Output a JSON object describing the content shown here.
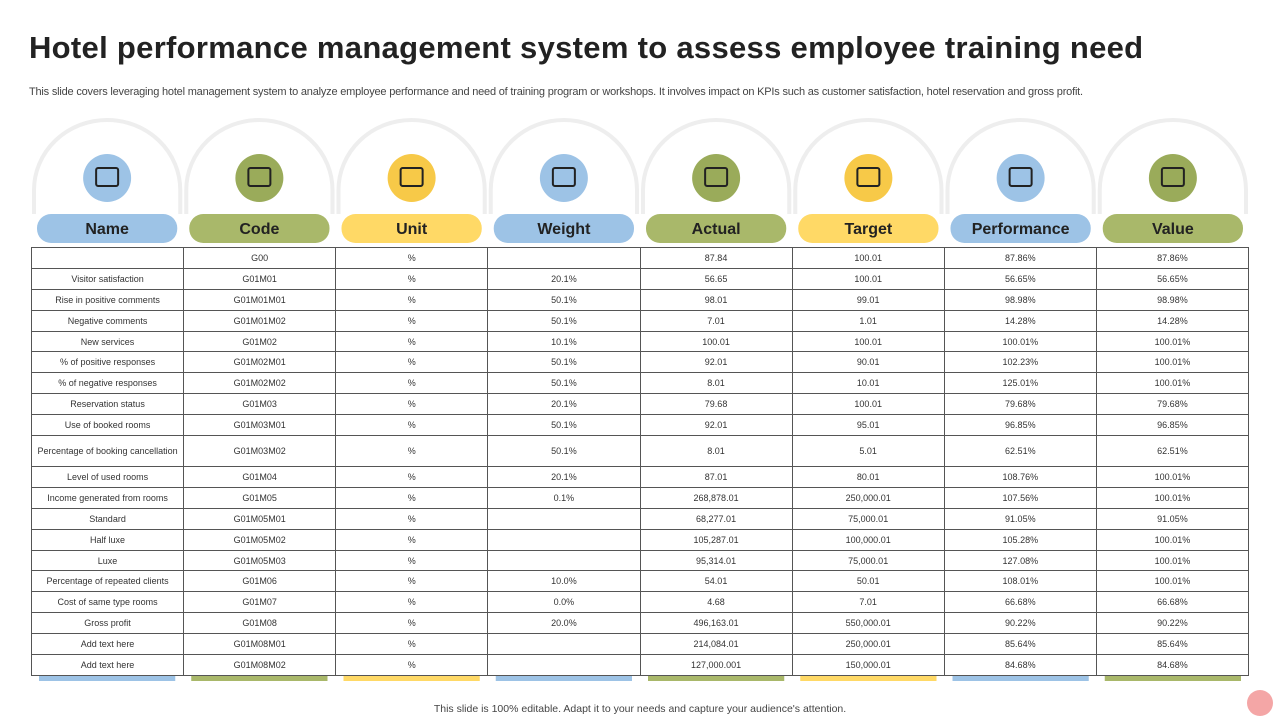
{
  "header": {
    "title": "Hotel performance management system to assess employee training need",
    "subtitle": "This slide covers leveraging hotel management system to analyze employee performance and need of training program or workshops. It involves impact on KPIs such as customer satisfaction, hotel reservation and gross profit."
  },
  "table": {
    "columns": [
      "Name",
      "Code",
      "Unit",
      "Weight",
      "Actual",
      "Target",
      "Performance",
      "Value"
    ],
    "rows": [
      [
        null,
        "G00",
        "%",
        null,
        "87.84",
        "100.01",
        "87.86%",
        "87.86%"
      ],
      [
        "Visitor satisfaction",
        "G01M01",
        "%",
        "20.1%",
        "56.65",
        "100.01",
        "56.65%",
        "56.65%"
      ],
      [
        "Rise in positive comments",
        "G01M01M01",
        "%",
        "50.1%",
        "98.01",
        "99.01",
        "98.98%",
        "98.98%"
      ],
      [
        "Negative comments",
        "G01M01M02",
        "%",
        "50.1%",
        "7.01",
        "1.01",
        "14.28%",
        "14.28%"
      ],
      [
        "New services",
        "G01M02",
        "%",
        "10.1%",
        "100.01",
        "100.01",
        "100.01%",
        "100.01%"
      ],
      [
        "% of positive responses",
        "G01M02M01",
        "%",
        "50.1%",
        "92.01",
        "90.01",
        "102.23%",
        "100.01%"
      ],
      [
        "% of negative responses",
        "G01M02M02",
        "%",
        "50.1%",
        "8.01",
        "10.01",
        "125.01%",
        "100.01%"
      ],
      [
        "Reservation status",
        "G01M03",
        "%",
        "20.1%",
        "79.68",
        "100.01",
        "79.68%",
        "79.68%"
      ],
      [
        "Use of booked rooms",
        "G01M03M01",
        "%",
        "50.1%",
        "92.01",
        "95.01",
        "96.85%",
        "96.85%"
      ],
      [
        "Percentage of booking cancellation",
        "G01M03M02",
        "%",
        "50.1%",
        "8.01",
        "5.01",
        "62.51%",
        "62.51%"
      ],
      [
        "Level of used rooms",
        "G01M04",
        "%",
        "20.1%",
        "87.01",
        "80.01",
        "108.76%",
        "100.01%"
      ],
      [
        "Income generated  from rooms",
        "G01M05",
        "%",
        "0.1%",
        "268,878.01",
        "250,000.01",
        "107.56%",
        "100.01%"
      ],
      [
        "Standard",
        "G01M05M01",
        "%",
        null,
        "68,277.01",
        "75,000.01",
        "91.05%",
        "91.05%"
      ],
      [
        "Half luxe",
        "G01M05M02",
        "%",
        null,
        "105,287.01",
        "100,000.01",
        "105.28%",
        "100.01%"
      ],
      [
        "Luxe",
        "G01M05M03",
        "%",
        null,
        "95,314.01",
        "75,000.01",
        "127.08%",
        "100.01%"
      ],
      [
        "Percentage of repeated clients",
        "G01M06",
        "%",
        "10.0%",
        "54.01",
        "50.01",
        "108.01%",
        "100.01%"
      ],
      [
        "Cost of same type rooms",
        "G01M07",
        "%",
        "0.0%",
        "4.68",
        "7.01",
        "66.68%",
        "66.68%"
      ],
      [
        "Gross profit",
        "G01M08",
        "%",
        "20.0%",
        "496,163.01",
        "550,000.01",
        "90.22%",
        "90.22%"
      ],
      [
        "Add text here",
        "G01M08M01",
        "%",
        null,
        "214,084.01",
        "250,000.01",
        "85.64%",
        "85.64%"
      ],
      [
        "Add text here",
        "G01M08M02",
        "%",
        null,
        "127,000.001",
        "150,000.01",
        "84.68%",
        "84.68%"
      ]
    ]
  },
  "footer": {
    "note": "This slide is 100% editable. Adapt it to your needs and capture your audience's attention."
  }
}
